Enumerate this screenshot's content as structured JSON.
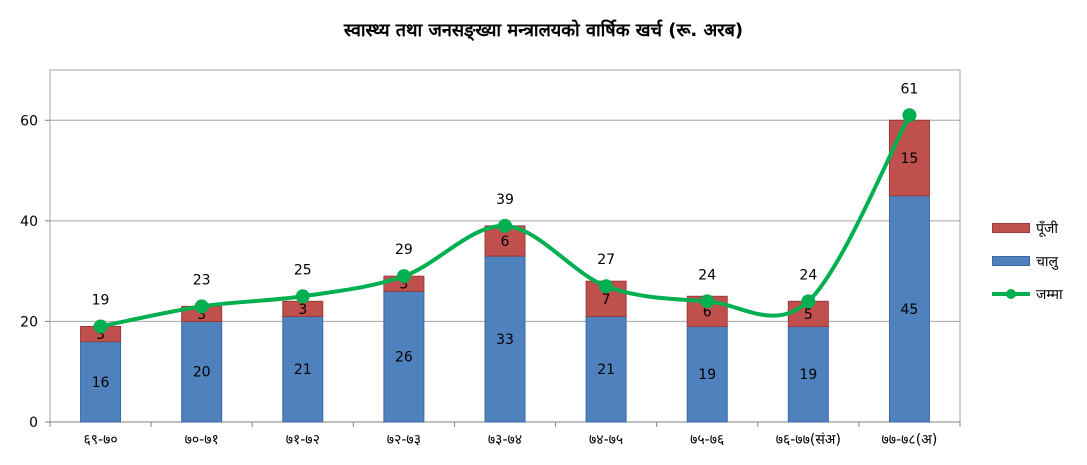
{
  "title": "स्वास्थ्य तथा जनसङ्ख्या मन्त्रालयको वार्षिक खर्च (रू. अरब)",
  "colors": {
    "capital": "#C0504D",
    "recurrent": "#4F81BD",
    "total": "#00B050"
  },
  "chart_data": {
    "type": "bar",
    "stacked": true,
    "categories": [
      "६९-७०",
      "७०-७१",
      "७१-७२",
      "७२-७३",
      "७३-७४",
      "७४-७५",
      "७५-७६",
      "७६-७७(संअ)",
      "७७-७८(अ)"
    ],
    "series": [
      {
        "name": "चालु",
        "kind": "bar",
        "values": [
          16,
          20,
          21,
          26,
          33,
          21,
          19,
          19,
          45
        ]
      },
      {
        "name": "पूँजी",
        "kind": "bar",
        "values": [
          3,
          3,
          3,
          3,
          6,
          7,
          6,
          5,
          15
        ]
      },
      {
        "name": "जम्मा",
        "kind": "line",
        "values": [
          19,
          23,
          25,
          29,
          39,
          27,
          24,
          24,
          61
        ]
      }
    ],
    "yticks": [
      "0",
      "20",
      "40",
      "60"
    ],
    "ylim": [
      0,
      70
    ],
    "grid": true,
    "legend": "right"
  }
}
